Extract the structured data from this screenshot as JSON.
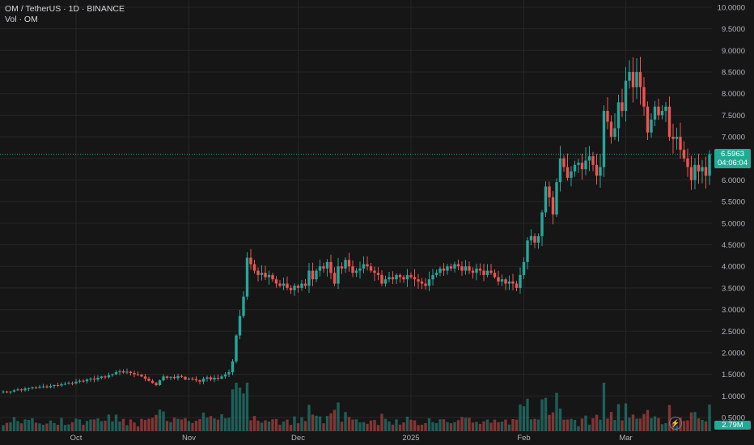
{
  "header": {
    "symbol_line": "OM / TetherUS · 1D · BINANCE",
    "volume_line": "Vol · OM"
  },
  "price_tag": {
    "price": "6.5963",
    "countdown": "04:06:04"
  },
  "volume_tag": "2.79M",
  "colors": {
    "up": "#26a69a",
    "down": "#ef5350",
    "background": "#161616",
    "grid": "#262626",
    "last_price_line": "#22ab94"
  },
  "icons": {
    "lightning": "lightning-icon"
  },
  "chart_data": {
    "type": "candlestick",
    "interval": "1D",
    "y_ticks": [
      "10.0000",
      "9.5000",
      "9.0000",
      "8.5000",
      "8.0000",
      "7.5000",
      "7.0000",
      "6.5000",
      "6.0000",
      "5.5000",
      "5.0000",
      "4.5000",
      "4.0000",
      "3.5000",
      "3.0000",
      "2.5000",
      "2.0000",
      "1.5000",
      "1.0000",
      "0.5000"
    ],
    "x_ticks": [
      "Oct",
      "Nov",
      "Dec",
      "2025",
      "Feb",
      "Mar"
    ],
    "ylim": [
      0.3,
      10.0
    ],
    "start_date": "2024-09-11",
    "last_price": 6.5963,
    "close": [
      1.1,
      1.09,
      1.1,
      1.13,
      1.15,
      1.13,
      1.17,
      1.18,
      1.2,
      1.19,
      1.21,
      1.22,
      1.2,
      1.23,
      1.25,
      1.24,
      1.27,
      1.28,
      1.3,
      1.29,
      1.33,
      1.35,
      1.34,
      1.38,
      1.4,
      1.38,
      1.42,
      1.45,
      1.43,
      1.48,
      1.5,
      1.55,
      1.57,
      1.54,
      1.56,
      1.53,
      1.5,
      1.49,
      1.45,
      1.4,
      1.35,
      1.3,
      1.25,
      1.36,
      1.45,
      1.42,
      1.44,
      1.41,
      1.46,
      1.44,
      1.38,
      1.4,
      1.39,
      1.36,
      1.33,
      1.4,
      1.43,
      1.38,
      1.42,
      1.4,
      1.45,
      1.5,
      1.55,
      1.8,
      2.4,
      2.85,
      3.3,
      4.2,
      4.05,
      3.9,
      3.8,
      3.85,
      3.75,
      3.8,
      3.7,
      3.6,
      3.55,
      3.6,
      3.5,
      3.45,
      3.55,
      3.5,
      3.6,
      3.55,
      3.9,
      3.7,
      3.9,
      4.0,
      3.95,
      4.1,
      3.85,
      3.6,
      4.0,
      3.95,
      4.15,
      4.0,
      3.85,
      3.9,
      3.95,
      4.05,
      4.0,
      3.9,
      3.85,
      3.8,
      3.6,
      3.7,
      3.75,
      3.7,
      3.8,
      3.75,
      3.7,
      3.8,
      3.75,
      3.7,
      3.65,
      3.6,
      3.55,
      3.7,
      3.8,
      3.85,
      3.95,
      3.9,
      4.0,
      3.95,
      4.05,
      4.0,
      3.9,
      4.0,
      3.9,
      3.85,
      3.95,
      3.9,
      3.8,
      3.9,
      3.85,
      3.75,
      3.65,
      3.7,
      3.6,
      3.65,
      3.6,
      3.5,
      3.8,
      4.1,
      4.6,
      4.7,
      4.55,
      4.7,
      5.25,
      5.85,
      5.6,
      5.2,
      5.95,
      6.5,
      6.3,
      6.05,
      6.2,
      6.35,
      6.4,
      6.25,
      6.45,
      6.55,
      6.35,
      6.1,
      6.3,
      7.6,
      7.35,
      7.0,
      7.2,
      7.8,
      7.6,
      8.3,
      8.5,
      8.15,
      8.5,
      8.15,
      7.7,
      7.1,
      7.4,
      7.7,
      7.5,
      7.6,
      7.7,
      7.0,
      6.95,
      7.0,
      6.7,
      6.5,
      6.3,
      6.0,
      6.35,
      6.2,
      6.3,
      6.1,
      6.6
    ]
  }
}
